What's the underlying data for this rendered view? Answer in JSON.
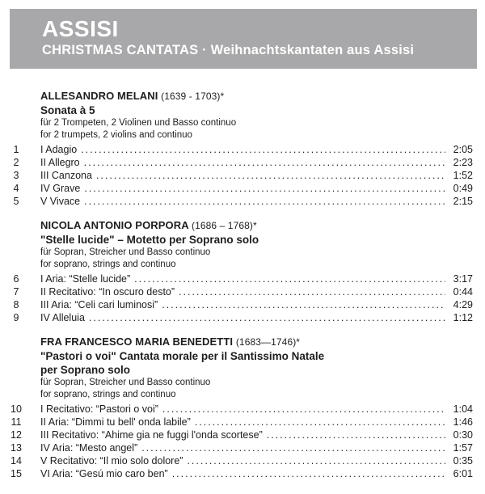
{
  "header": {
    "title": "ASSISI",
    "subtitle": "CHRISTMAS CANTATAS · Weihnachtskantaten aus Assisi"
  },
  "colors": {
    "band_background": "#a8a8aa",
    "band_text": "#ffffff",
    "body_text": "#1d1d1d"
  },
  "sections": [
    {
      "composer": "ALLESANDRO MELANI",
      "years": "(1639 - 1703)*",
      "title_lines": [
        "Sonata à 5"
      ],
      "scoring_lines": [
        "für 2 Trompeten, 2 Violinen und Basso continuo",
        "for 2 trumpets, 2 violins and continuo"
      ],
      "tracks": [
        {
          "no": "1",
          "title": "I Adagio",
          "time": "2:05"
        },
        {
          "no": "2",
          "title": "II Allegro",
          "time": "2:23"
        },
        {
          "no": "3",
          "title": "III Canzona",
          "time": "1:52"
        },
        {
          "no": "4",
          "title": "IV Grave",
          "time": "0:49"
        },
        {
          "no": "5",
          "title": "V Vivace",
          "time": "2:15"
        }
      ]
    },
    {
      "composer": "NICOLA ANTONIO PORPORA",
      "years": "(1686 – 1768)*",
      "title_lines": [
        "\"Stelle lucide\" – Motetto per Soprano solo"
      ],
      "scoring_lines": [
        "für Sopran, Streicher und Basso continuo",
        "for soprano, strings and continuo"
      ],
      "tracks": [
        {
          "no": "6",
          "title": "I Aria: “Stelle lucide”",
          "time": "3:17"
        },
        {
          "no": "7",
          "title": "II Recitativo: “In oscuro desto”",
          "time": "0:44"
        },
        {
          "no": "8",
          "title": "III Aria: “Celi cari luminosi”",
          "time": "4:29"
        },
        {
          "no": "9",
          "title": "IV Alleluia",
          "time": "1:12"
        }
      ]
    },
    {
      "composer": "FRA FRANCESCO MARIA BENEDETTI",
      "years": "(1683—1746)*",
      "title_lines": [
        "\"Pastori o voi\" Cantata morale per il Santissimo Natale",
        "per Soprano solo"
      ],
      "scoring_lines": [
        "für Sopran, Streicher und Basso continuo",
        "for soprano, strings and continuo"
      ],
      "tracks": [
        {
          "no": "10",
          "title": "I Recitativo: “Pastori o voi”",
          "time": "1:04"
        },
        {
          "no": "11",
          "title": "II Aria: “Dimmi tu bell' onda labile”",
          "time": "1:46"
        },
        {
          "no": "12",
          "title": "III Recitativo: “Ahime gia ne fuggi l'onda scortese”",
          "time": "0:30"
        },
        {
          "no": "13",
          "title": "IV Aria: “Mesto angel”",
          "time": "1:57"
        },
        {
          "no": "14",
          "title": "V Recitativo: “Il mio solo dolore”",
          "time": "0:35"
        },
        {
          "no": "15",
          "title": "VI Aria: “Gesú mio caro ben”",
          "time": "6:01"
        }
      ]
    }
  ]
}
